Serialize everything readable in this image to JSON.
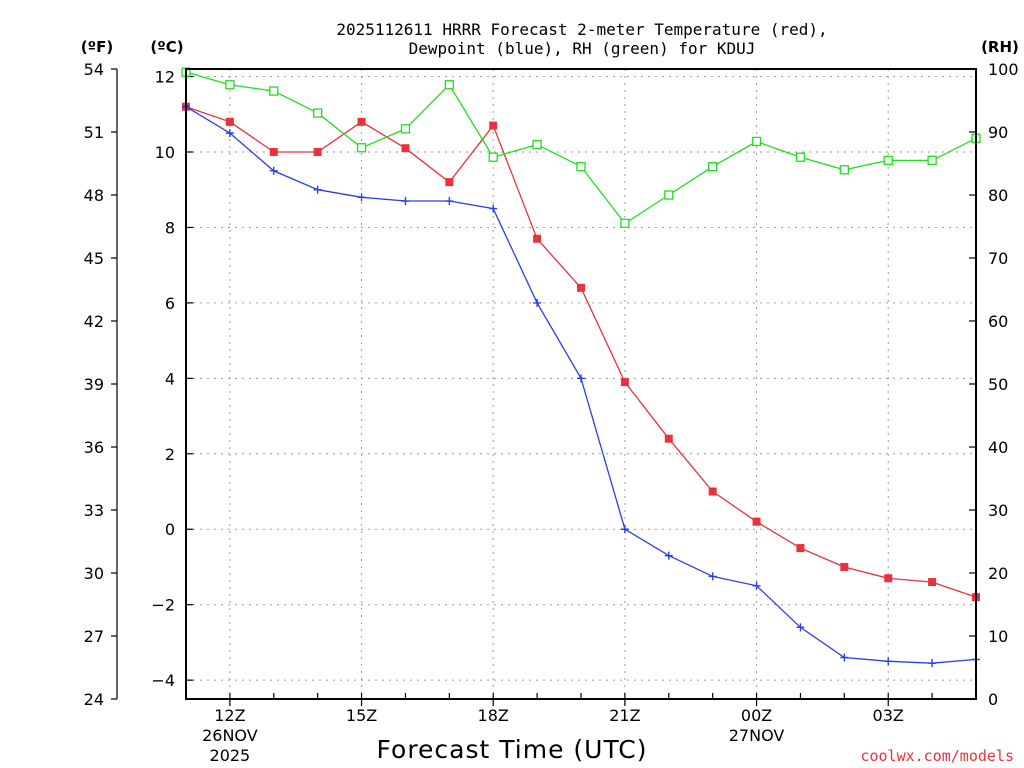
{
  "chart_data": {
    "type": "line",
    "title_line1": "2025112611 HRRR Forecast 2-meter Temperature (red),",
    "title_line2": "Dewpoint (blue), RH (green) for KDUJ",
    "xlabel": "Forecast Time (UTC)",
    "credit": "coolwx.com/models",
    "units": {
      "left_f": "(ºF)",
      "left_c": "(ºC)",
      "right": "(RH)"
    },
    "x_hours": [
      0,
      1,
      2,
      3,
      4,
      5,
      6,
      7,
      8,
      9,
      10,
      11,
      12,
      13,
      14,
      15,
      16,
      17,
      18
    ],
    "x_ticks": [
      {
        "hour": 1,
        "label": "12Z",
        "sub1": "26NOV",
        "sub2": "2025"
      },
      {
        "hour": 4,
        "label": "15Z",
        "sub1": "",
        "sub2": ""
      },
      {
        "hour": 7,
        "label": "18Z",
        "sub1": "",
        "sub2": ""
      },
      {
        "hour": 10,
        "label": "21Z",
        "sub1": "",
        "sub2": ""
      },
      {
        "hour": 13,
        "label": "00Z",
        "sub1": "27NOV",
        "sub2": ""
      },
      {
        "hour": 16,
        "label": "03Z",
        "sub1": "",
        "sub2": ""
      }
    ],
    "xlim": [
      0,
      18
    ],
    "ylim_c": [
      -4.5,
      12.2
    ],
    "ylim_f": [
      24,
      54
    ],
    "ylim_rh": [
      0,
      100
    ],
    "c_ticks": [
      12,
      10,
      8,
      6,
      4,
      2,
      0,
      -2,
      -4
    ],
    "c_tick_labels": [
      "12",
      "10",
      "8",
      "6",
      "4",
      "2",
      "0",
      "−2",
      "−4"
    ],
    "f_ticks": [
      54,
      51,
      48,
      45,
      42,
      39,
      36,
      33,
      30,
      27,
      24
    ],
    "rh_ticks": [
      100,
      90,
      80,
      70,
      60,
      50,
      40,
      30,
      20,
      10,
      0
    ],
    "series": [
      {
        "name": "Temperature",
        "axis": "c",
        "color": "#e8323c",
        "marker": "filled-square",
        "values": [
          11.2,
          10.8,
          10.0,
          10.0,
          10.8,
          10.1,
          9.2,
          10.7,
          7.7,
          6.4,
          3.9,
          2.4,
          1.0,
          0.2,
          -0.5,
          -1.0,
          -1.3,
          -1.4,
          -1.8
        ]
      },
      {
        "name": "Dewpoint",
        "axis": "c",
        "color": "#2b3fe6",
        "marker": "plus",
        "values": [
          11.2,
          10.5,
          9.5,
          9.0,
          8.8,
          8.7,
          8.7,
          8.5,
          6.0,
          4.0,
          0.0,
          -0.7,
          -1.25,
          -1.5,
          -2.6,
          -3.4,
          -3.5,
          -3.55,
          -3.45
        ]
      },
      {
        "name": "RH",
        "axis": "rh",
        "color": "#22dd22",
        "marker": "open-square",
        "values": [
          99.5,
          97.5,
          96.5,
          93,
          87.5,
          90.5,
          97.5,
          86,
          88,
          84.5,
          75.5,
          80,
          84.5,
          88.5,
          86,
          84,
          85.5,
          85.5,
          89
        ]
      }
    ]
  }
}
